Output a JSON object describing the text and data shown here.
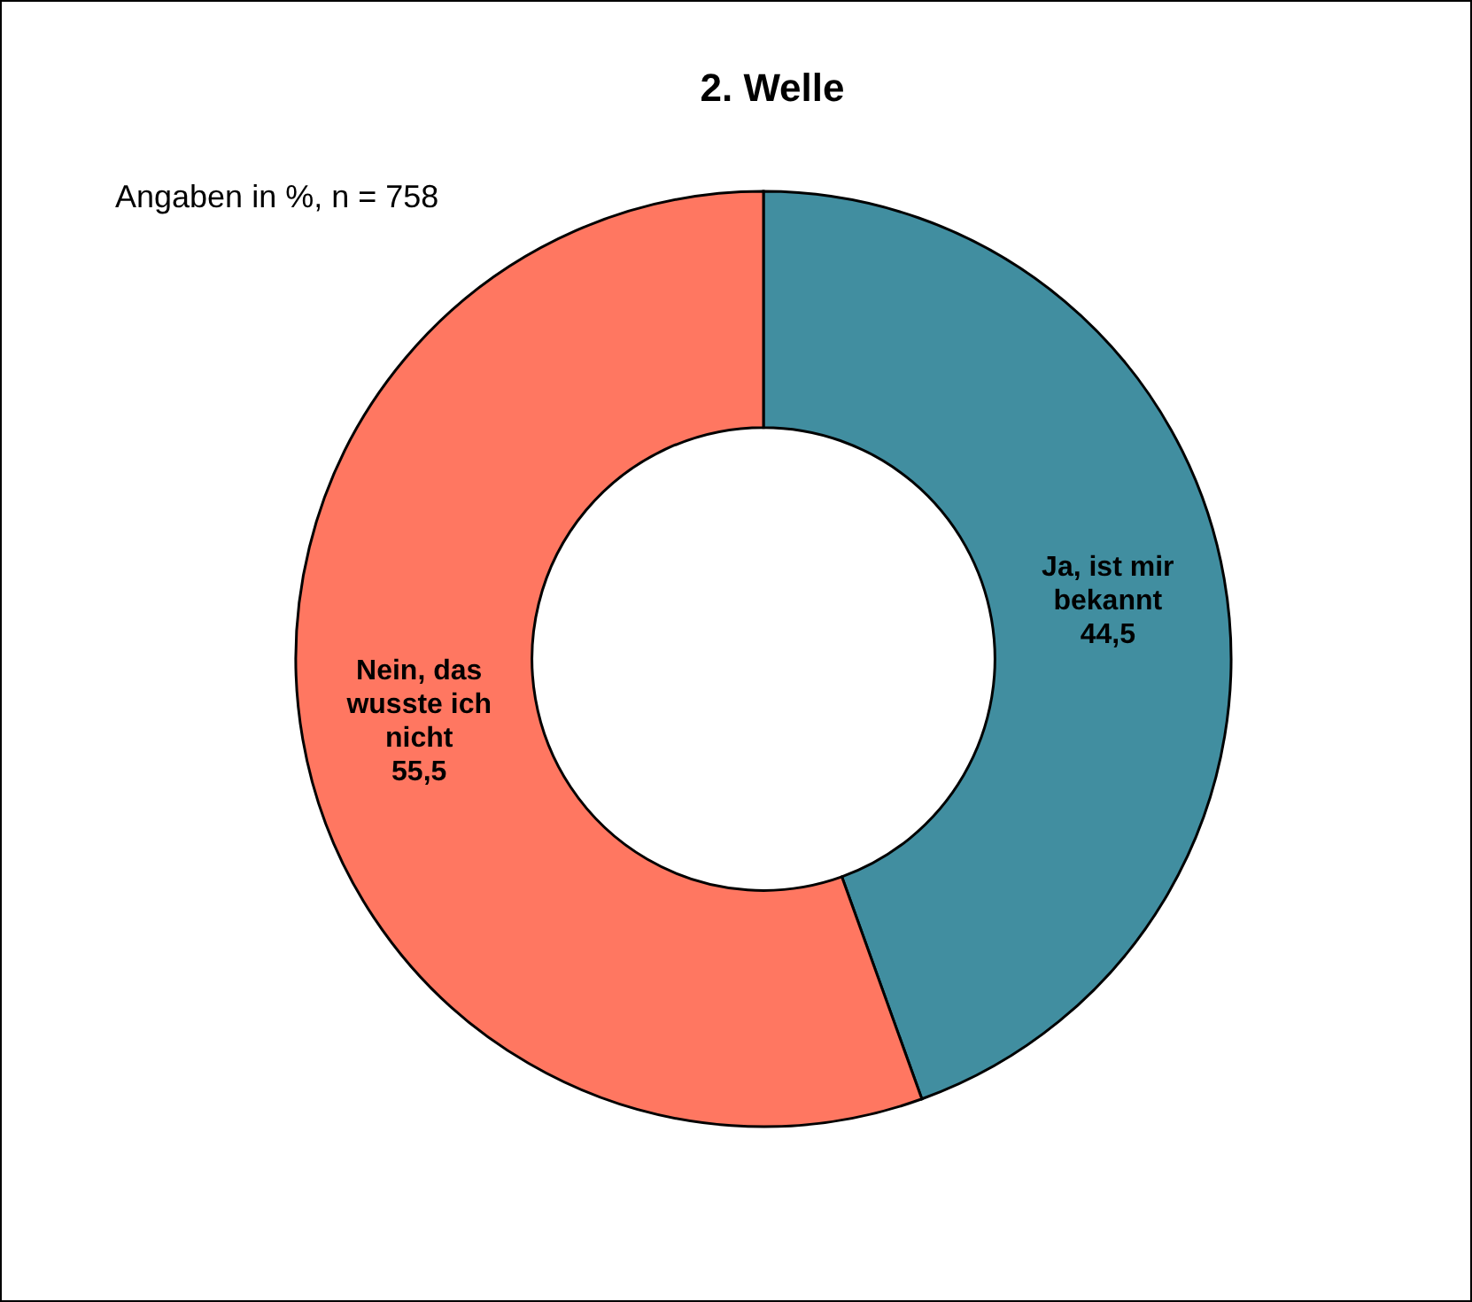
{
  "chart_data": {
    "type": "donut",
    "title": "2. Welle",
    "annotations": [
      "Angaben in %, n = 758"
    ],
    "categories": [
      "Ja, ist mir bekannt",
      "Nein, das wusste ich nicht"
    ],
    "values": [
      44.5,
      55.5
    ],
    "colors": [
      "#418ea0",
      "#ff7761"
    ],
    "value_labels": [
      "44,5",
      "55,5"
    ]
  }
}
